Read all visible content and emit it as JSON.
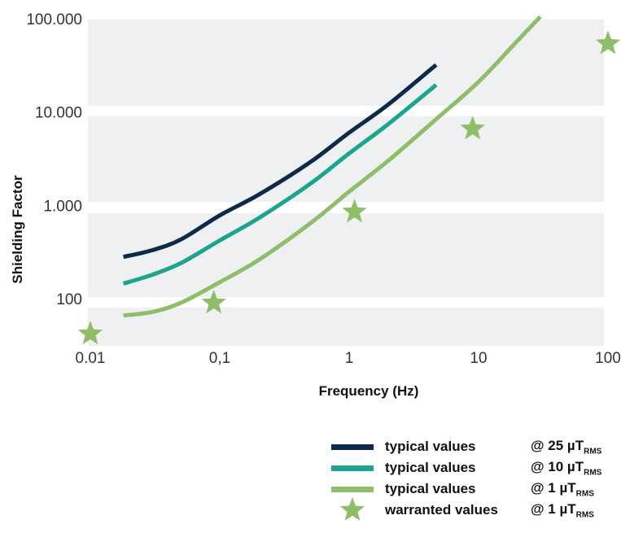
{
  "chart_data": {
    "type": "line",
    "title": "",
    "xlabel": "Frequency (Hz)",
    "ylabel": "Shielding Factor",
    "x_scale": "log",
    "y_scale": "log",
    "xlim": [
      0.01,
      100
    ],
    "ylim": [
      30,
      100000
    ],
    "x_ticks": [
      {
        "value": 0.01,
        "label": "0.01"
      },
      {
        "value": 0.1,
        "label": "0,1"
      },
      {
        "value": 1,
        "label": "1"
      },
      {
        "value": 10,
        "label": "10"
      },
      {
        "value": 100,
        "label": "100"
      }
    ],
    "y_ticks": [
      {
        "value": 100,
        "label": "100"
      },
      {
        "value": 1000,
        "label": "1.000"
      },
      {
        "value": 10000,
        "label": "10.000"
      },
      {
        "value": 100000,
        "label": "100.000"
      }
    ],
    "grid": "alternating horizontal bands",
    "legend_position": "bottom-right",
    "series": [
      {
        "name": "typical values",
        "condition": "@ 25 µT",
        "condition_sub": "RMS",
        "color": "#0d2a4a",
        "marker": "line",
        "x": [
          0.018,
          0.03,
          0.05,
          0.1,
          0.2,
          0.5,
          1,
          2,
          4.7
        ],
        "y": [
          280,
          330,
          430,
          780,
          1300,
          2900,
          6000,
          12000,
          32000
        ]
      },
      {
        "name": "typical values",
        "condition": "@ 10 µT",
        "condition_sub": "RMS",
        "color": "#1aa58c",
        "marker": "line",
        "x": [
          0.018,
          0.03,
          0.05,
          0.1,
          0.2,
          0.5,
          1,
          2,
          4.7
        ],
        "y": [
          145,
          180,
          240,
          420,
          730,
          1700,
          3600,
          7400,
          19500
        ]
      },
      {
        "name": "typical values",
        "condition": "@ 1 µT",
        "condition_sub": "RMS",
        "color": "#8fbe6a",
        "marker": "line",
        "x": [
          0.018,
          0.03,
          0.05,
          0.1,
          0.2,
          0.5,
          1,
          2,
          5,
          10,
          20,
          30
        ],
        "y": [
          66,
          72,
          90,
          150,
          260,
          640,
          1400,
          3000,
          9000,
          21000,
          58000,
          105000
        ]
      },
      {
        "name": "warranted values",
        "condition": "@ 1 µT",
        "condition_sub": "RMS",
        "color": "#8fbe6a",
        "marker": "star",
        "x": [
          0.01,
          0.09,
          1.1,
          9,
          100
        ],
        "y": [
          42,
          90,
          850,
          6600,
          54000
        ]
      }
    ]
  }
}
